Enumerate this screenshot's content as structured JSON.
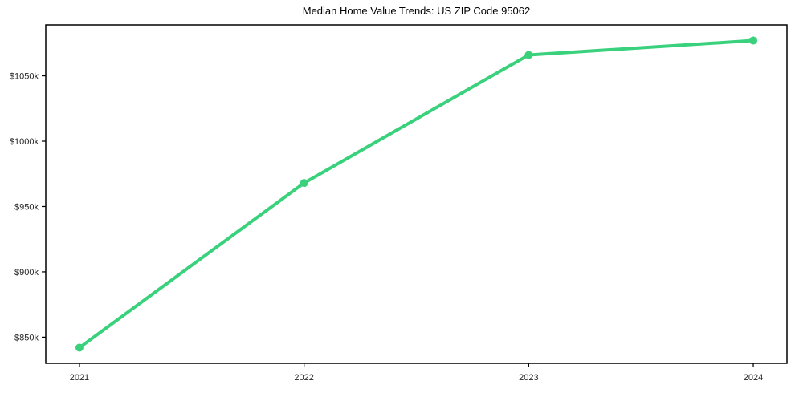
{
  "chart": {
    "title": "Median Home Value Trends: US ZIP Code 95062"
  },
  "chart_data": {
    "type": "line",
    "title": "Median Home Value Trends: US ZIP Code 95062",
    "categories": [
      "2021",
      "2022",
      "2023",
      "2024"
    ],
    "x": [
      2021,
      2022,
      2023,
      2024
    ],
    "values": [
      842,
      968,
      1066,
      1077
    ],
    "values_unit": "thousands of USD",
    "xlabel": "",
    "ylabel": "",
    "xlim": [
      2020.85,
      2024.15
    ],
    "ylim": [
      830,
      1089
    ],
    "x_ticks": [
      {
        "value": 2021,
        "label": "2021"
      },
      {
        "value": 2022,
        "label": "2022"
      },
      {
        "value": 2023,
        "label": "2023"
      },
      {
        "value": 2024,
        "label": "2024"
      }
    ],
    "y_ticks": [
      {
        "value": 850,
        "label": "$850k"
      },
      {
        "value": 900,
        "label": "$900k"
      },
      {
        "value": 950,
        "label": "$950k"
      },
      {
        "value": 1000,
        "label": "$1000k"
      },
      {
        "value": 1050,
        "label": "$1050k"
      }
    ],
    "grid": false,
    "legend": "none",
    "line_color": "#3ad17c",
    "spine_color": "#000000",
    "tick_label_color": "#262626",
    "background_color": "#ffffff"
  }
}
